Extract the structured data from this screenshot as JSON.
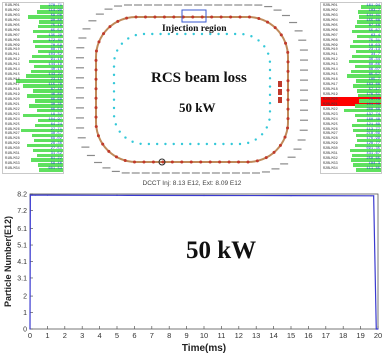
{
  "left_list": {
    "rows": [
      {
        "name": "R1BLM01",
        "value": "278.71",
        "level": 0.38
      },
      {
        "name": "R1BLM02",
        "value": "114.99",
        "level": 0.44
      },
      {
        "name": "R1BLM03",
        "value": "59.06",
        "level": 0.58
      },
      {
        "name": "R1BLM04",
        "value": "90.80",
        "level": 0.4
      },
      {
        "name": "R1BLM05",
        "value": "75.16",
        "level": 0.42
      },
      {
        "name": "R1BLM06",
        "value": "65.52",
        "level": 0.5
      },
      {
        "name": "R1BLM07",
        "value": "135.29",
        "level": 0.44
      },
      {
        "name": "R1BLM08",
        "value": "172.41",
        "level": 0.5
      },
      {
        "name": "R1BLM09",
        "value": "70.59",
        "level": 0.46
      },
      {
        "name": "R1BLM10",
        "value": "88.75",
        "level": 0.42
      },
      {
        "name": "R1BLM11",
        "value": "103.52",
        "level": 0.52
      },
      {
        "name": "R1BLM12",
        "value": "91.16",
        "level": 0.56
      },
      {
        "name": "R1BLM13",
        "value": "144.19",
        "level": 0.48
      },
      {
        "name": "R1BLM14",
        "value": "40.15",
        "level": 0.54
      },
      {
        "name": "R1BLM15",
        "value": "143.22",
        "level": 0.62
      },
      {
        "name": "R1BLM16",
        "value": "23.15",
        "level": 0.78
      },
      {
        "name": "R1BLM17",
        "value": "115.78",
        "level": 0.66
      },
      {
        "name": "R1BLM18",
        "value": "87.48",
        "level": 0.5
      },
      {
        "name": "R1BLM19",
        "value": "46.89",
        "level": 0.6
      },
      {
        "name": "R1BLM20",
        "value": "86.68",
        "level": 0.46
      },
      {
        "name": "R1BLM21",
        "value": "30.35",
        "level": 0.56
      },
      {
        "name": "R1BLM22",
        "value": "86.54",
        "level": 0.44
      },
      {
        "name": "R1BLM23",
        "value": "19.32",
        "level": 0.66
      },
      {
        "name": "R1BLM24",
        "value": "104.97",
        "level": 0.42
      },
      {
        "name": "R1BLM25",
        "value": "64.24",
        "level": 0.46
      },
      {
        "name": "R1BLM26",
        "value": "27.71",
        "level": 0.7
      },
      {
        "name": "R1BLM27",
        "value": "38.57",
        "level": 0.52
      },
      {
        "name": "R1BLM28",
        "value": "69.02",
        "level": 0.48
      },
      {
        "name": "R1BLM29",
        "value": "29.36",
        "level": 0.6
      },
      {
        "name": "R1BLM30",
        "value": "27.51",
        "level": 0.5
      },
      {
        "name": "R1BLM31",
        "value": "31.52",
        "level": 0.44
      },
      {
        "name": "R1BLM32",
        "value": "81.22",
        "level": 0.54
      },
      {
        "name": "R1BLM33",
        "value": "59.46",
        "level": 0.42
      },
      {
        "name": "R1BLM34",
        "value": "601.53",
        "level": 0.4
      }
    ]
  },
  "right_list": {
    "rows": [
      {
        "name": "R2BLM01",
        "value": "161.94",
        "level": 0.34
      },
      {
        "name": "R2BLM02",
        "value": "103.7",
        "level": 0.38
      },
      {
        "name": "R2BLM03",
        "value": "141.41",
        "level": 0.36
      },
      {
        "name": "R2BLM04",
        "value": "155.68",
        "level": 0.4
      },
      {
        "name": "R2BLM05",
        "value": "87.48",
        "level": 0.44
      },
      {
        "name": "R2BLM06",
        "value": "55.87",
        "level": 0.48
      },
      {
        "name": "R2BLM07",
        "value": "63.4",
        "level": 0.4
      },
      {
        "name": "R2BLM08",
        "value": "75.31",
        "level": 0.46
      },
      {
        "name": "R2BLM09",
        "value": "18.63",
        "level": 0.52
      },
      {
        "name": "R2BLM10",
        "value": "23.13",
        "level": 0.42
      },
      {
        "name": "R2BLM11",
        "value": "34.7",
        "level": 0.48
      },
      {
        "name": "R2BLM12",
        "value": "36.34",
        "level": 0.54
      },
      {
        "name": "R2BLM13",
        "value": "88.86",
        "level": 0.44
      },
      {
        "name": "R2BLM14",
        "value": "66.07",
        "level": 0.5
      },
      {
        "name": "R2BLM15",
        "value": "85.57",
        "level": 0.56
      },
      {
        "name": "R2BLM16",
        "value": "105.7",
        "level": 0.42
      },
      {
        "name": "R2BLM17",
        "value": "163.68",
        "level": 0.46
      },
      {
        "name": "R2BLM18",
        "value": "57.17",
        "level": 0.4
      },
      {
        "name": "R2BLM19",
        "value": "176.51",
        "level": 0.38
      },
      {
        "name": "R2BLM20",
        "value": "75.75",
        "level": 0.36,
        "alarm": true
      },
      {
        "name": "R2BLM21",
        "value": "101.58",
        "level": 0.44
      },
      {
        "name": "R2BLM22",
        "value": "208.88",
        "level": 0.62
      },
      {
        "name": "R2BLM23",
        "value": "137.74",
        "level": 0.44
      },
      {
        "name": "R2BLM24",
        "value": "160.48",
        "level": 0.4
      },
      {
        "name": "R2BLM25",
        "value": "121.89",
        "level": 0.48
      },
      {
        "name": "R2BLM26",
        "value": "113.77",
        "level": 0.46
      },
      {
        "name": "R2BLM27",
        "value": "218.09",
        "level": 0.42
      },
      {
        "name": "R2BLM28",
        "value": "176.99",
        "level": 0.4
      },
      {
        "name": "R2BLM29",
        "value": "128.77",
        "level": 0.44
      },
      {
        "name": "R2BLM30",
        "value": "691.35",
        "level": 0.52
      },
      {
        "name": "R2BLM31",
        "value": "431.67",
        "level": 0.48
      },
      {
        "name": "R2BLM32",
        "value": "250.65",
        "level": 0.5
      },
      {
        "name": "R2BLM33",
        "value": "184.3",
        "level": 0.46
      },
      {
        "name": "R2BLM34",
        "value": "111.85",
        "level": 0.42
      }
    ]
  },
  "ring": {
    "injection_label": "Injection region",
    "title": "RCS beam loss",
    "power": "50 kW"
  },
  "colors": {
    "bar": "#5fe05f",
    "value_text": "#1a44c8",
    "alarm": "#ff0000",
    "ring": "#c08a5a",
    "ring_dot": "#c0392b",
    "inner_dot": "#33c8d8",
    "trace": "#3a3ad0"
  },
  "chart_label": "50 kW",
  "chart_data": {
    "type": "line",
    "title": "DCCT Inj: 8.13 E12,  Ext: 8.09 E12",
    "xlabel": "Time(ms)",
    "ylabel": "Particle Number(E12)",
    "xlim": [
      0,
      20
    ],
    "ylim": [
      0,
      8.2
    ],
    "x_ticks": [
      "0",
      "1",
      "2",
      "3",
      "4",
      "5",
      "6",
      "7",
      "8",
      "9",
      "10",
      "11",
      "12",
      "13",
      "14",
      "15",
      "16",
      "17",
      "18",
      "19",
      "20"
    ],
    "y_ticks": [
      "0",
      "1",
      "2",
      "3.1",
      "4.1",
      "5.1",
      "6.1",
      "7.2",
      "8.2"
    ],
    "x": [
      0,
      0.02,
      0.12,
      0.3,
      1,
      5,
      10,
      15,
      19.6,
      19.75,
      19.9,
      20
    ],
    "y": [
      0,
      8.13,
      8.13,
      8.13,
      8.13,
      8.12,
      8.11,
      8.1,
      8.09,
      8.09,
      0,
      0
    ]
  }
}
